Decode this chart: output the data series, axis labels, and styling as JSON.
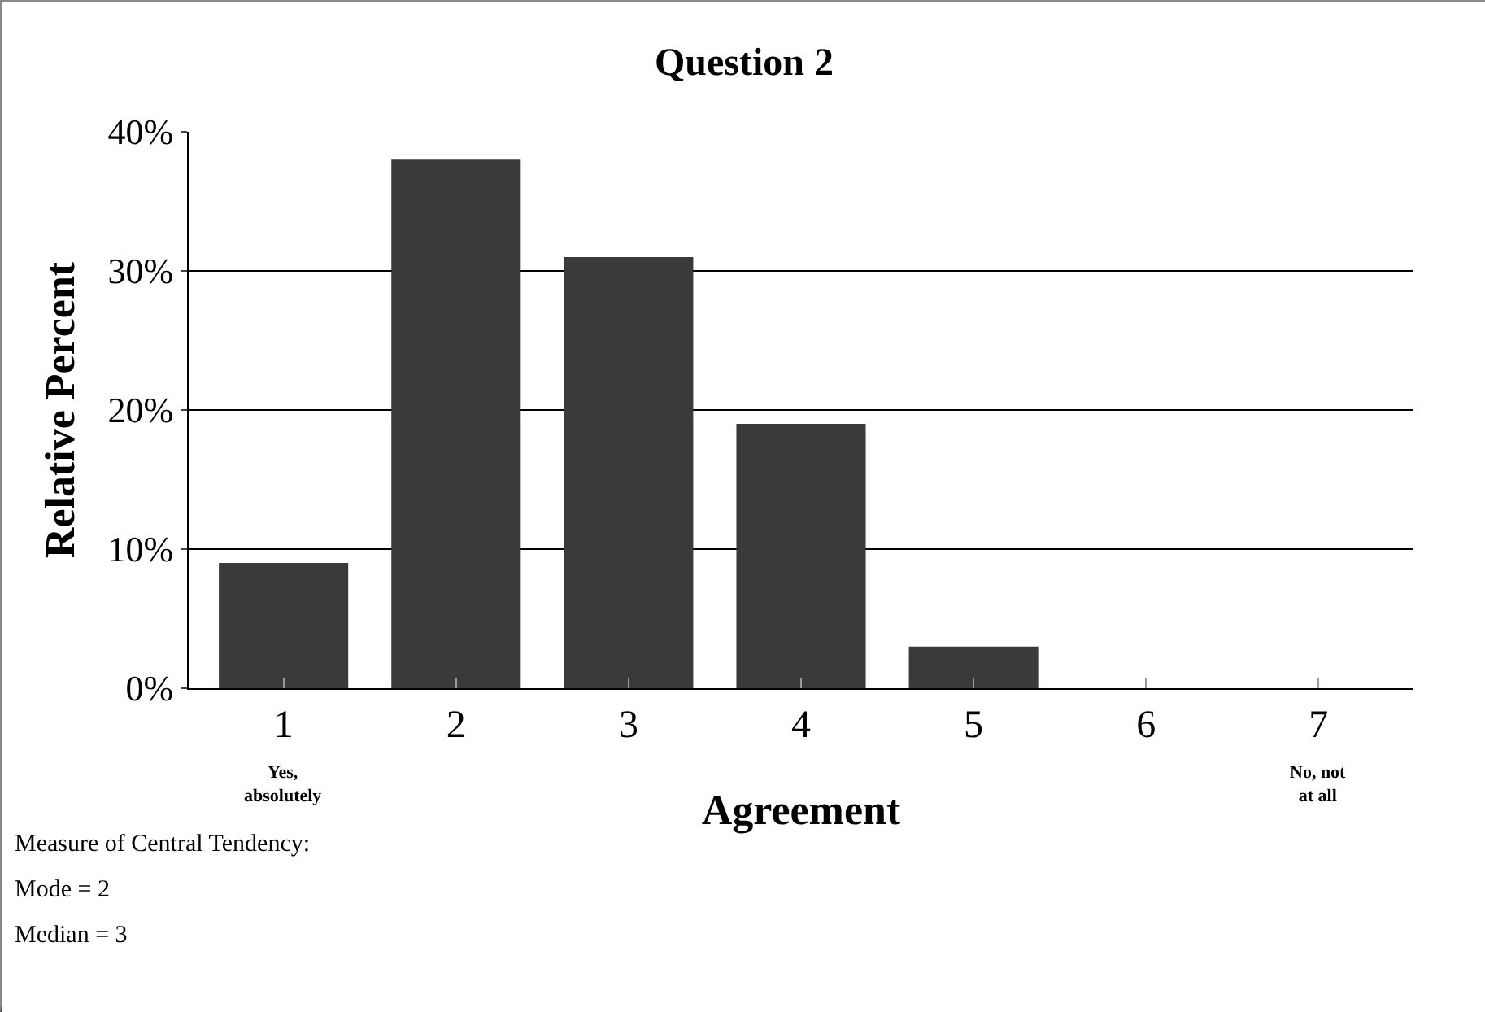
{
  "chart_data": {
    "type": "bar",
    "title": "Question 2",
    "xlabel": "Agreement",
    "ylabel": "Relative Percent",
    "categories": [
      "1",
      "2",
      "3",
      "4",
      "5",
      "6",
      "7"
    ],
    "values": [
      9,
      38,
      31,
      19,
      3,
      0,
      0
    ],
    "color": "#3a3a3a",
    "ylim": [
      0,
      40
    ],
    "yticks": [
      {
        "value": 0,
        "label": "0%"
      },
      {
        "value": 10,
        "label": "10%"
      },
      {
        "value": 20,
        "label": "20%"
      },
      {
        "value": 30,
        "label": "30%"
      },
      {
        "value": 40,
        "label": "40%"
      }
    ],
    "grid": "y",
    "annotations": [
      "Yes,\nabsolutely",
      "No, not\nat all",
      "Measure of Central Tendency:",
      "Mode = 2",
      "Median = 3"
    ]
  }
}
